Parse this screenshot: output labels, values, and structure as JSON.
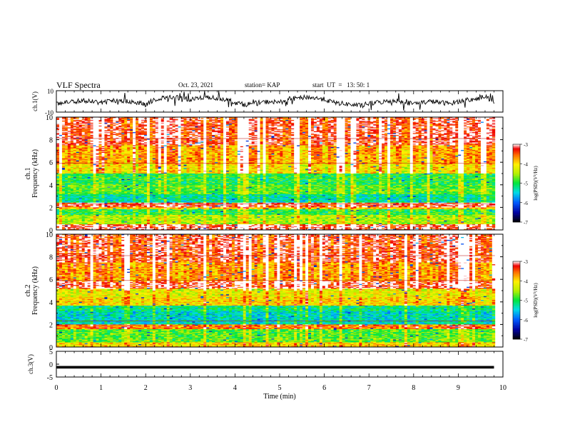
{
  "header": {
    "title": "VLF Spectra",
    "date": "Oct. 23, 2021",
    "station": "station= KAP",
    "start_time": "start  UT  =   13: 50: 1"
  },
  "chart_data": [
    {
      "type": "line",
      "panel": "ch1-waveform",
      "ylabel": "ch.1(V)",
      "xlim": [
        0,
        10
      ],
      "ylim": [
        -10,
        10
      ],
      "y_ticks": [
        "10",
        "-10"
      ],
      "color": "#000000",
      "x": [
        0.0,
        0.2,
        0.4,
        0.6,
        0.8,
        1.0,
        1.2,
        1.4,
        1.6,
        1.8,
        2.0,
        2.2,
        2.4,
        2.6,
        2.8,
        3.0,
        3.2,
        3.4,
        3.6,
        3.8,
        4.0,
        4.2,
        4.4,
        4.6,
        4.8,
        5.0,
        5.2,
        5.4,
        5.6,
        5.8,
        6.0,
        6.2,
        6.4,
        6.6,
        6.8,
        7.0,
        7.2,
        7.4,
        7.6,
        7.8,
        8.0,
        8.2,
        8.4,
        8.6,
        8.8,
        9.0,
        9.2,
        9.4,
        9.6,
        9.8
      ],
      "y": [
        -2,
        -1,
        0,
        1,
        0,
        -1,
        0,
        1,
        0,
        -1,
        -3,
        2,
        3,
        4,
        3,
        2,
        3,
        4,
        3,
        2,
        -1,
        -3,
        -2,
        -1,
        0,
        -1,
        2,
        3,
        4,
        3,
        2,
        -1,
        -2,
        -3,
        -4,
        -2,
        -1,
        0,
        1,
        -1,
        -2,
        -1,
        0,
        -1,
        -2,
        0,
        1,
        2,
        5,
        -2
      ]
    },
    {
      "type": "heatmap",
      "panel": "ch1-spectrogram",
      "xlabel": "",
      "ylabel": "Frequency (kHz)",
      "channel_label": "ch.1",
      "xlim": [
        0,
        10
      ],
      "ylim": [
        0,
        10
      ],
      "y_ticks": [
        "0",
        "2",
        "4",
        "6",
        "8",
        "10"
      ],
      "colorbar": {
        "label": "log(PSD)(V²/Hz)",
        "range": [
          -7,
          -3
        ],
        "ticks": [
          "-3",
          "-4",
          "-5",
          "-6",
          "-7"
        ]
      },
      "freq_bands_kHz": [
        [
          0,
          0.5,
          -3.2
        ],
        [
          0.5,
          1.3,
          -4.5
        ],
        [
          1.3,
          1.8,
          -5.0
        ],
        [
          1.8,
          2.0,
          -4.0
        ],
        [
          2.0,
          2.4,
          -3.3
        ],
        [
          2.4,
          3.2,
          -5.3
        ],
        [
          3.2,
          4.0,
          -4.8
        ],
        [
          4.0,
          5.0,
          -5.0
        ],
        [
          5.0,
          5.8,
          -4.1
        ],
        [
          5.8,
          7.5,
          -3.8
        ],
        [
          7.5,
          10,
          -3.3
        ]
      ]
    },
    {
      "type": "heatmap",
      "panel": "ch2-spectrogram",
      "xlabel": "",
      "ylabel": "Frequency (kHz)",
      "channel_label": "ch.2",
      "xlim": [
        0,
        10
      ],
      "ylim": [
        0,
        10
      ],
      "y_ticks": [
        "0",
        "2",
        "4",
        "6",
        "8",
        "10"
      ],
      "colorbar": {
        "label": "log(PSD)(V²/Hz)",
        "range": [
          -7,
          -3
        ],
        "ticks": [
          "-3",
          "-4",
          "-5",
          "-6",
          "-7"
        ]
      },
      "freq_bands_kHz": [
        [
          0,
          0.4,
          -4.0
        ],
        [
          0.4,
          1.6,
          -4.8
        ],
        [
          1.6,
          2.0,
          -3.6
        ],
        [
          2.0,
          3.2,
          -5.4
        ],
        [
          3.2,
          3.7,
          -5.2
        ],
        [
          3.7,
          4.4,
          -4.0
        ],
        [
          4.4,
          5.2,
          -4.2
        ],
        [
          5.2,
          5.8,
          -3.2
        ],
        [
          5.8,
          7.5,
          -3.7
        ],
        [
          7.5,
          10,
          -3.3
        ]
      ]
    },
    {
      "type": "line",
      "panel": "ch3-waveform",
      "xlabel": "Time (min)",
      "ylabel": "ch.3(V)",
      "xlim": [
        0,
        10
      ],
      "ylim": [
        -5,
        5
      ],
      "y_ticks": [
        "5",
        "0",
        "-5"
      ],
      "x_ticks": [
        "0",
        "1",
        "2",
        "3",
        "4",
        "5",
        "6",
        "7",
        "8",
        "9",
        "10"
      ],
      "band": {
        "x": [
          0,
          9.8
        ],
        "center": -1.2,
        "thickness": 1.0
      }
    }
  ]
}
